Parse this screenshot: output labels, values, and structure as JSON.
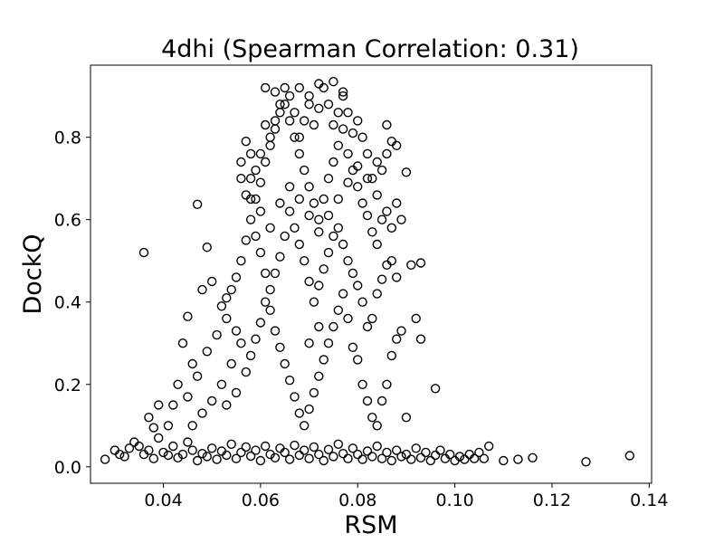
{
  "chart_data": {
    "type": "scatter",
    "title": "4dhi (Spearman Correlation: 0.31)",
    "xlabel": "RSM",
    "ylabel": "DockQ",
    "xlim": [
      0.025,
      0.1405
    ],
    "ylim": [
      -0.04,
      0.975
    ],
    "xticks": [
      "0.04",
      "0.06",
      "0.08",
      "0.10",
      "0.12",
      "0.14"
    ],
    "yticks": [
      "0.0",
      "0.2",
      "0.4",
      "0.6",
      "0.8"
    ],
    "marker": "hollow circle",
    "grid": false,
    "n_points_note": "",
    "series": [
      {
        "points": [
          [
            0.028,
            0.018
          ],
          [
            0.03,
            0.04
          ],
          [
            0.031,
            0.03
          ],
          [
            0.032,
            0.025
          ],
          [
            0.033,
            0.045
          ],
          [
            0.034,
            0.06
          ],
          [
            0.035,
            0.05
          ],
          [
            0.036,
            0.03
          ],
          [
            0.037,
            0.04
          ],
          [
            0.038,
            0.02
          ],
          [
            0.039,
            0.07
          ],
          [
            0.04,
            0.035
          ],
          [
            0.041,
            0.028
          ],
          [
            0.042,
            0.05
          ],
          [
            0.043,
            0.022
          ],
          [
            0.044,
            0.03
          ],
          [
            0.045,
            0.06
          ],
          [
            0.046,
            0.04
          ],
          [
            0.047,
            0.015
          ],
          [
            0.048,
            0.032
          ],
          [
            0.049,
            0.025
          ],
          [
            0.05,
            0.045
          ],
          [
            0.051,
            0.018
          ],
          [
            0.052,
            0.038
          ],
          [
            0.053,
            0.028
          ],
          [
            0.054,
            0.055
          ],
          [
            0.055,
            0.02
          ],
          [
            0.056,
            0.035
          ],
          [
            0.057,
            0.048
          ],
          [
            0.058,
            0.026
          ],
          [
            0.059,
            0.04
          ],
          [
            0.06,
            0.015
          ],
          [
            0.061,
            0.05
          ],
          [
            0.062,
            0.03
          ],
          [
            0.063,
            0.022
          ],
          [
            0.064,
            0.045
          ],
          [
            0.065,
            0.035
          ],
          [
            0.066,
            0.018
          ],
          [
            0.067,
            0.052
          ],
          [
            0.068,
            0.028
          ],
          [
            0.069,
            0.04
          ],
          [
            0.07,
            0.02
          ],
          [
            0.071,
            0.048
          ],
          [
            0.072,
            0.03
          ],
          [
            0.073,
            0.015
          ],
          [
            0.074,
            0.042
          ],
          [
            0.075,
            0.025
          ],
          [
            0.076,
            0.055
          ],
          [
            0.077,
            0.032
          ],
          [
            0.078,
            0.02
          ],
          [
            0.079,
            0.045
          ],
          [
            0.08,
            0.03
          ],
          [
            0.081,
            0.018
          ],
          [
            0.082,
            0.038
          ],
          [
            0.083,
            0.025
          ],
          [
            0.084,
            0.05
          ],
          [
            0.085,
            0.02
          ],
          [
            0.086,
            0.035
          ],
          [
            0.087,
            0.015
          ],
          [
            0.088,
            0.04
          ],
          [
            0.089,
            0.025
          ],
          [
            0.09,
            0.03
          ],
          [
            0.091,
            0.018
          ],
          [
            0.092,
            0.045
          ],
          [
            0.093,
            0.022
          ],
          [
            0.094,
            0.035
          ],
          [
            0.095,
            0.015
          ],
          [
            0.096,
            0.028
          ],
          [
            0.097,
            0.04
          ],
          [
            0.098,
            0.02
          ],
          [
            0.099,
            0.03
          ],
          [
            0.1,
            0.015
          ],
          [
            0.101,
            0.025
          ],
          [
            0.102,
            0.018
          ],
          [
            0.103,
            0.03
          ],
          [
            0.104,
            0.02
          ],
          [
            0.105,
            0.035
          ],
          [
            0.106,
            0.02
          ],
          [
            0.107,
            0.05
          ],
          [
            0.11,
            0.015
          ],
          [
            0.113,
            0.018
          ],
          [
            0.116,
            0.022
          ],
          [
            0.127,
            0.012
          ],
          [
            0.136,
            0.027
          ],
          [
            0.036,
            0.52
          ],
          [
            0.047,
            0.637
          ],
          [
            0.049,
            0.533
          ],
          [
            0.048,
            0.43
          ],
          [
            0.05,
            0.45
          ],
          [
            0.052,
            0.39
          ],
          [
            0.045,
            0.365
          ],
          [
            0.044,
            0.3
          ],
          [
            0.046,
            0.25
          ],
          [
            0.043,
            0.2
          ],
          [
            0.042,
            0.15
          ],
          [
            0.039,
            0.15
          ],
          [
            0.041,
            0.1
          ],
          [
            0.038,
            0.095
          ],
          [
            0.037,
            0.12
          ],
          [
            0.045,
            0.17
          ],
          [
            0.047,
            0.22
          ],
          [
            0.049,
            0.28
          ],
          [
            0.051,
            0.32
          ],
          [
            0.053,
            0.36
          ],
          [
            0.055,
            0.33
          ],
          [
            0.056,
            0.3
          ],
          [
            0.054,
            0.25
          ],
          [
            0.052,
            0.2
          ],
          [
            0.05,
            0.16
          ],
          [
            0.048,
            0.13
          ],
          [
            0.046,
            0.1
          ],
          [
            0.053,
            0.15
          ],
          [
            0.055,
            0.18
          ],
          [
            0.057,
            0.23
          ],
          [
            0.058,
            0.27
          ],
          [
            0.059,
            0.31
          ],
          [
            0.06,
            0.35
          ],
          [
            0.061,
            0.4
          ],
          [
            0.062,
            0.38
          ],
          [
            0.063,
            0.33
          ],
          [
            0.064,
            0.29
          ],
          [
            0.065,
            0.25
          ],
          [
            0.066,
            0.21
          ],
          [
            0.067,
            0.17
          ],
          [
            0.068,
            0.13
          ],
          [
            0.069,
            0.1
          ],
          [
            0.07,
            0.14
          ],
          [
            0.071,
            0.18
          ],
          [
            0.072,
            0.22
          ],
          [
            0.073,
            0.26
          ],
          [
            0.074,
            0.3
          ],
          [
            0.075,
            0.34
          ],
          [
            0.076,
            0.38
          ],
          [
            0.077,
            0.42
          ],
          [
            0.078,
            0.36
          ],
          [
            0.079,
            0.29
          ],
          [
            0.08,
            0.26
          ],
          [
            0.081,
            0.2
          ],
          [
            0.082,
            0.16
          ],
          [
            0.083,
            0.12
          ],
          [
            0.084,
            0.1
          ],
          [
            0.085,
            0.16
          ],
          [
            0.086,
            0.2
          ],
          [
            0.087,
            0.27
          ],
          [
            0.088,
            0.31
          ],
          [
            0.089,
            0.33
          ],
          [
            0.09,
            0.12
          ],
          [
            0.092,
            0.36
          ],
          [
            0.093,
            0.31
          ],
          [
            0.096,
            0.19
          ],
          [
            0.093,
            0.495
          ],
          [
            0.091,
            0.49
          ],
          [
            0.086,
            0.49
          ],
          [
            0.085,
            0.455
          ],
          [
            0.087,
            0.5
          ],
          [
            0.088,
            0.46
          ],
          [
            0.084,
            0.42
          ],
          [
            0.083,
            0.36
          ],
          [
            0.082,
            0.34
          ],
          [
            0.081,
            0.4
          ],
          [
            0.08,
            0.44
          ],
          [
            0.079,
            0.47
          ],
          [
            0.078,
            0.5
          ],
          [
            0.077,
            0.54
          ],
          [
            0.076,
            0.58
          ],
          [
            0.075,
            0.56
          ],
          [
            0.074,
            0.52
          ],
          [
            0.073,
            0.48
          ],
          [
            0.072,
            0.44
          ],
          [
            0.071,
            0.4
          ],
          [
            0.07,
            0.45
          ],
          [
            0.069,
            0.5
          ],
          [
            0.068,
            0.54
          ],
          [
            0.067,
            0.58
          ],
          [
            0.066,
            0.62
          ],
          [
            0.065,
            0.56
          ],
          [
            0.064,
            0.51
          ],
          [
            0.063,
            0.47
          ],
          [
            0.062,
            0.43
          ],
          [
            0.061,
            0.47
          ],
          [
            0.06,
            0.52
          ],
          [
            0.059,
            0.56
          ],
          [
            0.058,
            0.6
          ],
          [
            0.057,
            0.55
          ],
          [
            0.056,
            0.5
          ],
          [
            0.055,
            0.46
          ],
          [
            0.054,
            0.43
          ],
          [
            0.053,
            0.41
          ],
          [
            0.057,
            0.66
          ],
          [
            0.058,
            0.7
          ],
          [
            0.059,
            0.65
          ],
          [
            0.06,
            0.69
          ],
          [
            0.061,
            0.74
          ],
          [
            0.062,
            0.78
          ],
          [
            0.063,
            0.82
          ],
          [
            0.064,
            0.86
          ],
          [
            0.065,
            0.88
          ],
          [
            0.066,
            0.84
          ],
          [
            0.067,
            0.8
          ],
          [
            0.068,
            0.76
          ],
          [
            0.069,
            0.72
          ],
          [
            0.07,
            0.68
          ],
          [
            0.071,
            0.64
          ],
          [
            0.072,
            0.6
          ],
          [
            0.073,
            0.65
          ],
          [
            0.074,
            0.7
          ],
          [
            0.075,
            0.74
          ],
          [
            0.076,
            0.78
          ],
          [
            0.077,
            0.82
          ],
          [
            0.078,
            0.76
          ],
          [
            0.079,
            0.72
          ],
          [
            0.08,
            0.68
          ],
          [
            0.081,
            0.64
          ],
          [
            0.082,
            0.61
          ],
          [
            0.083,
            0.57
          ],
          [
            0.084,
            0.54
          ],
          [
            0.085,
            0.6
          ],
          [
            0.086,
            0.62
          ],
          [
            0.087,
            0.58
          ],
          [
            0.088,
            0.64
          ],
          [
            0.089,
            0.6
          ],
          [
            0.09,
            0.715
          ],
          [
            0.088,
            0.78
          ],
          [
            0.087,
            0.79
          ],
          [
            0.086,
            0.83
          ],
          [
            0.084,
            0.74
          ],
          [
            0.083,
            0.7
          ],
          [
            0.082,
            0.76
          ],
          [
            0.081,
            0.8
          ],
          [
            0.08,
            0.84
          ],
          [
            0.079,
            0.81
          ],
          [
            0.078,
            0.86
          ],
          [
            0.077,
            0.9
          ],
          [
            0.076,
            0.86
          ],
          [
            0.075,
            0.83
          ],
          [
            0.074,
            0.88
          ],
          [
            0.073,
            0.92
          ],
          [
            0.072,
            0.87
          ],
          [
            0.071,
            0.83
          ],
          [
            0.07,
            0.88
          ],
          [
            0.069,
            0.84
          ],
          [
            0.068,
            0.8
          ],
          [
            0.067,
            0.86
          ],
          [
            0.066,
            0.9
          ],
          [
            0.065,
            0.92
          ],
          [
            0.064,
            0.88
          ],
          [
            0.063,
            0.84
          ],
          [
            0.062,
            0.8
          ],
          [
            0.061,
            0.83
          ],
          [
            0.06,
            0.76
          ],
          [
            0.059,
            0.72
          ],
          [
            0.058,
            0.76
          ],
          [
            0.057,
            0.79
          ],
          [
            0.056,
            0.74
          ],
          [
            0.061,
            0.92
          ],
          [
            0.063,
            0.91
          ],
          [
            0.068,
            0.92
          ],
          [
            0.07,
            0.9
          ],
          [
            0.072,
            0.93
          ],
          [
            0.075,
            0.935
          ],
          [
            0.077,
            0.91
          ],
          [
            0.064,
            0.64
          ],
          [
            0.066,
            0.68
          ],
          [
            0.068,
            0.65
          ],
          [
            0.07,
            0.61
          ],
          [
            0.072,
            0.57
          ],
          [
            0.074,
            0.61
          ],
          [
            0.076,
            0.65
          ],
          [
            0.078,
            0.69
          ],
          [
            0.08,
            0.73
          ],
          [
            0.082,
            0.7
          ],
          [
            0.084,
            0.66
          ],
          [
            0.085,
            0.72
          ],
          [
            0.086,
            0.76
          ],
          [
            0.062,
            0.58
          ],
          [
            0.06,
            0.62
          ],
          [
            0.058,
            0.65
          ],
          [
            0.056,
            0.7
          ],
          [
            0.07,
            0.3
          ],
          [
            0.072,
            0.34
          ]
        ]
      }
    ]
  }
}
